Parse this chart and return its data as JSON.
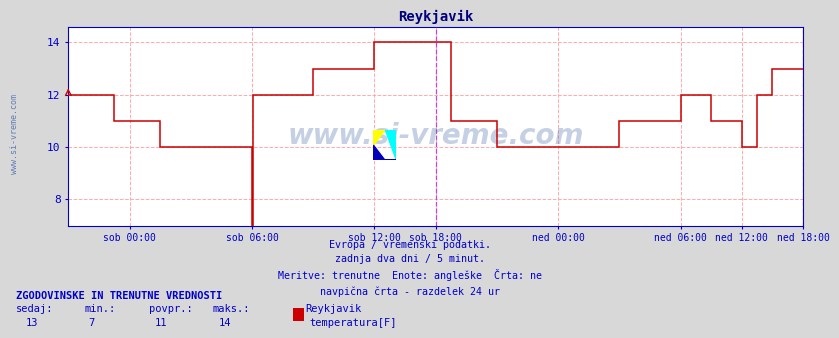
{
  "title": "Reykjavik",
  "title_color": "#000080",
  "bg_color": "#d8d8d8",
  "plot_bg_color": "#ffffff",
  "grid_color": "#ffaaaa",
  "grid_linestyle": "--",
  "line_color": "#cc0000",
  "vline_color": "#cc44cc",
  "axis_color": "#0000cc",
  "border_color": "#0000cc",
  "ylabel_vals": [
    8,
    10,
    12,
    14
  ],
  "ylim": [
    7.0,
    14.6
  ],
  "xlim": [
    0,
    576
  ],
  "xtick_positions": [
    48,
    144,
    240,
    288,
    384,
    480,
    528,
    576
  ],
  "xtick_labels": [
    "sob 00:00",
    "sob 06:00",
    "sob 12:00",
    "sob 18:00",
    "ned 00:00",
    "ned 06:00",
    "ned 12:00",
    "ned 18:00"
  ],
  "vline_x": 288,
  "vline_x2": 576,
  "subtitle_lines": [
    "Evropa / vremenski podatki.",
    "zadnja dva dni / 5 minut.",
    "Meritve: trenutne  Enote: angleške  Črta: ne",
    "navpična črta - razdelek 24 ur"
  ],
  "footer_title": "ZGODOVINSKE IN TRENUTNE VREDNOSTI",
  "footer_labels": [
    "sedaj:",
    "min.:",
    "povpr.:",
    "maks.:"
  ],
  "footer_values": [
    "13",
    "7",
    "11",
    "14"
  ],
  "footer_series": "Reykjavik",
  "footer_legend": "temperatura[F]",
  "footer_legend_color": "#cc0000",
  "watermark_text": "www.si-vreme.com",
  "watermark_color": "#4466aa",
  "watermark_alpha": 0.3,
  "left_label": "www.si-vreme.com",
  "left_label_color": "#4466aa",
  "series": [
    [
      0,
      12
    ],
    [
      36,
      12
    ],
    [
      36,
      11
    ],
    [
      72,
      11
    ],
    [
      72,
      10
    ],
    [
      144,
      10
    ],
    [
      144,
      7
    ],
    [
      145,
      7
    ],
    [
      145,
      12
    ],
    [
      192,
      12
    ],
    [
      192,
      13
    ],
    [
      240,
      13
    ],
    [
      240,
      14
    ],
    [
      300,
      14
    ],
    [
      300,
      11
    ],
    [
      336,
      11
    ],
    [
      336,
      10
    ],
    [
      432,
      10
    ],
    [
      432,
      11
    ],
    [
      480,
      11
    ],
    [
      480,
      12
    ],
    [
      504,
      12
    ],
    [
      504,
      11
    ],
    [
      528,
      11
    ],
    [
      528,
      10
    ],
    [
      540,
      10
    ],
    [
      540,
      12
    ],
    [
      552,
      12
    ],
    [
      552,
      13
    ],
    [
      576,
      13
    ]
  ]
}
